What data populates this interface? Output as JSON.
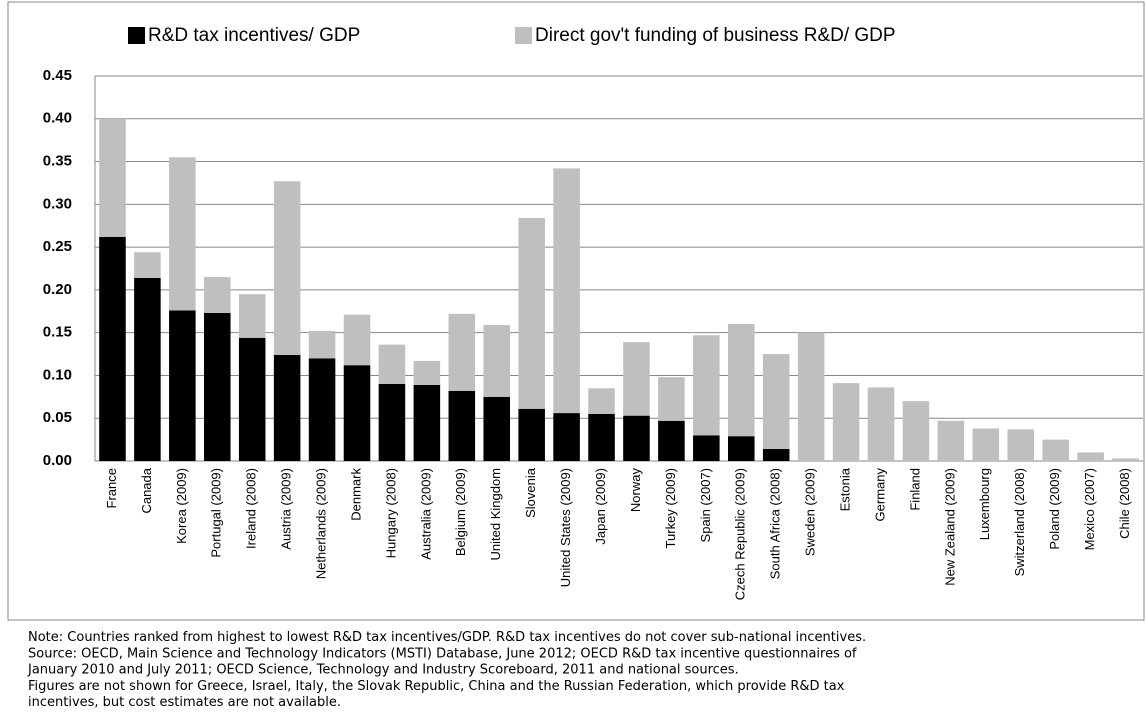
{
  "chart_data": {
    "type": "stacked_bar",
    "categories": [
      "France",
      "Canada",
      "Korea (2009)",
      "Portugal (2009)",
      "Ireland (2008)",
      "Austria (2009)",
      "Netherlands (2009)",
      "Denmark",
      "Hungary (2008)",
      "Australia (2009)",
      "Belgium (2009)",
      "United Kingdom",
      "Slovenia",
      "United States (2009)",
      "Japan (2009)",
      "Norway",
      "Turkey (2009)",
      "Spain (2007)",
      "Czech Republic (2009)",
      "South Africa (2008)",
      "Sweden (2009)",
      "Estonia",
      "Germany",
      "Finland",
      "New Zealand (2009)",
      "Luxembourg",
      "Switzerland (2008)",
      "Poland (2009)",
      "Mexico (2007)",
      "Chile (2008)"
    ],
    "series": [
      {
        "name": "R&D tax incentives/ GDP",
        "color": "#000000",
        "values": [
          0.262,
          0.214,
          0.176,
          0.173,
          0.144,
          0.124,
          0.12,
          0.112,
          0.09,
          0.089,
          0.082,
          0.075,
          0.061,
          0.056,
          0.055,
          0.053,
          0.047,
          0.03,
          0.029,
          0.014,
          0,
          0,
          0,
          0,
          0,
          0,
          0,
          0,
          0,
          0
        ]
      },
      {
        "name": "Direct gov't funding of business R&D/ GDP",
        "color": "#bfbfbf",
        "values": [
          0.138,
          0.03,
          0.179,
          0.042,
          0.051,
          0.203,
          0.032,
          0.059,
          0.046,
          0.028,
          0.09,
          0.084,
          0.223,
          0.286,
          0.03,
          0.086,
          0.051,
          0.117,
          0.131,
          0.111,
          0.15,
          0.091,
          0.086,
          0.07,
          0.047,
          0.038,
          0.037,
          0.025,
          0.01,
          0.003
        ]
      }
    ],
    "ylim": [
      0,
      0.45
    ],
    "yticks": [
      {
        "value": 0,
        "label": "0.00"
      },
      {
        "value": 0.05,
        "label": "0.05"
      },
      {
        "value": 0.1,
        "label": "0.10"
      },
      {
        "value": 0.15,
        "label": "0.15"
      },
      {
        "value": 0.2,
        "label": "0.20"
      },
      {
        "value": 0.25,
        "label": "0.25"
      },
      {
        "value": 0.3,
        "label": "0.30"
      },
      {
        "value": 0.35,
        "label": "0.35"
      },
      {
        "value": 0.4,
        "label": "0.40"
      },
      {
        "value": 0.45,
        "label": "0.45"
      }
    ],
    "grid": true,
    "legend": "top",
    "notes": [
      "Note: Countries ranked from highest to lowest R&D tax incentives/GDP.  R&D tax incentives do not cover sub-national incentives.",
      "Source: OECD, Main Science and Technology Indicators (MSTI) Database, June 2012; OECD R&D tax incentive questionnaires of",
      "January 2010 and July 2011; OECD Science, Technology and Industry Scoreboard, 2011 and national sources.",
      "Figures are not shown for Greece, Israel, Italy, the Slovak Republic, China and the Russian Federation, which provide R&D tax",
      "incentives, but cost estimates are not available."
    ]
  }
}
